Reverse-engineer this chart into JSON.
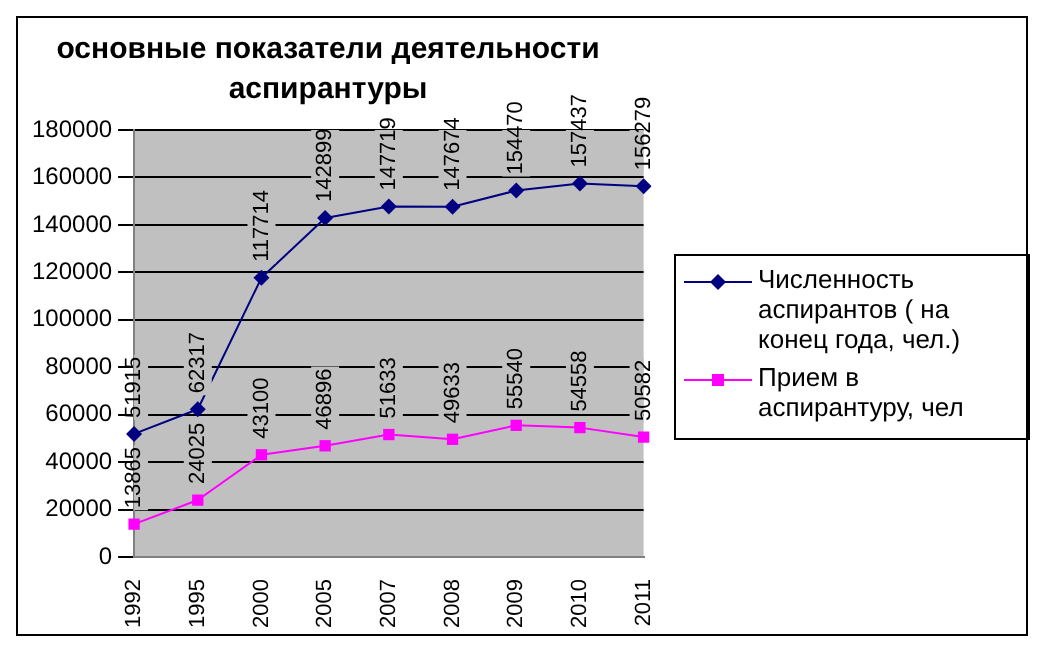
{
  "chart_data": {
    "type": "line",
    "title": "основные показатели деятельности аспирантуры",
    "categories": [
      "1992",
      "1995",
      "2000",
      "2005",
      "2007",
      "2008",
      "2009",
      "2010",
      "2011"
    ],
    "series": [
      {
        "name": "Численность аспирантов ( на конец года, чел.)",
        "color": "#000080",
        "marker": "diamond",
        "values": [
          51915,
          62317,
          117714,
          142899,
          147719,
          147674,
          154470,
          157437,
          156279
        ]
      },
      {
        "name": "Прием в аспирантуру, чел",
        "color": "#ff00ff",
        "marker": "square",
        "values": [
          13865,
          24025,
          43100,
          46896,
          51633,
          49633,
          55540,
          54558,
          50582
        ]
      }
    ],
    "ylim": [
      0,
      180000
    ],
    "yticks": [
      0,
      20000,
      40000,
      60000,
      80000,
      100000,
      120000,
      140000,
      160000,
      180000
    ],
    "grid": "y",
    "legend": "right",
    "data_labels": true,
    "line_style": "solid"
  }
}
